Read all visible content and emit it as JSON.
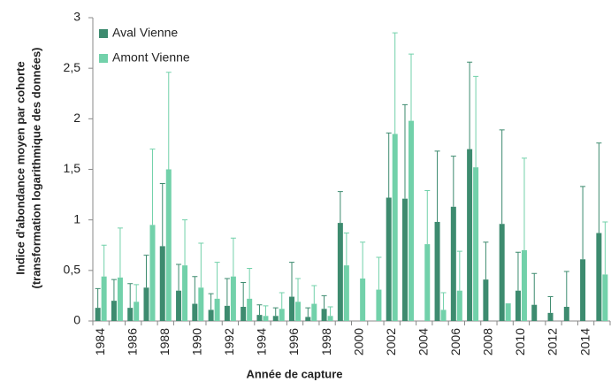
{
  "chart_data": {
    "type": "bar",
    "xlabel": "Année de capture",
    "ylabel": [
      "Indice d'abondance moyen par cohorte",
      "(transformation logarithmique des données)"
    ],
    "categories": [
      "1984",
      null,
      "1986",
      null,
      "1988",
      null,
      "1990",
      null,
      "1992",
      null,
      "1994",
      null,
      "1996",
      null,
      "1998",
      null,
      "2000",
      null,
      "2002",
      null,
      "2004",
      null,
      "2006",
      null,
      "2008",
      null,
      "2010",
      null,
      "2012",
      null,
      "2014",
      null
    ],
    "series": [
      {
        "name": "Aval Vienne",
        "color": "#3d8b6f",
        "values": [
          0.13,
          0.2,
          0.13,
          0.33,
          0.74,
          0.3,
          0.17,
          0.11,
          0.15,
          0.14,
          0.06,
          0.05,
          0.24,
          0.04,
          0.12,
          0.97,
          null,
          null,
          1.22,
          1.21,
          null,
          0.98,
          1.13,
          1.7,
          0.41,
          0.96,
          0.3,
          0.16,
          0.08,
          0.14,
          0.61,
          0.87
        ],
        "errors": [
          0.19,
          0.21,
          0.24,
          0.32,
          0.62,
          0.26,
          0.27,
          0.16,
          0.27,
          0.24,
          0.1,
          0.08,
          0.34,
          0.09,
          0.13,
          0.31,
          null,
          null,
          0.64,
          0.93,
          null,
          0.7,
          0.5,
          0.86,
          0.37,
          0.93,
          0.38,
          0.31,
          0.16,
          0.35,
          0.72,
          0.89
        ]
      },
      {
        "name": "Amont Vienne",
        "color": "#72d1aa",
        "values": [
          0.44,
          0.43,
          0.19,
          0.95,
          1.5,
          0.55,
          0.33,
          0.22,
          0.44,
          0.22,
          0.05,
          0.12,
          0.19,
          0.17,
          0.05,
          0.55,
          0.42,
          0.31,
          1.85,
          1.98,
          0.76,
          0.11,
          0.3,
          1.52,
          null,
          0.17,
          0.7,
          null,
          null,
          null,
          null,
          0.46
        ],
        "errors": [
          0.31,
          0.49,
          0.17,
          0.75,
          0.96,
          0.45,
          0.44,
          0.36,
          0.38,
          0.3,
          0.1,
          0.16,
          0.23,
          0.18,
          0.09,
          0.32,
          0.36,
          0.32,
          1.0,
          0.66,
          0.53,
          0.17,
          0.39,
          0.9,
          null,
          0,
          0.91,
          null,
          null,
          null,
          null,
          0.52
        ]
      }
    ],
    "ylim": [
      0,
      3
    ],
    "yticks": [
      0,
      {
        "value": 0.5,
        "label": "0,5"
      },
      1,
      {
        "value": 1.5,
        "label": "1,5"
      },
      2,
      {
        "value": 2.5,
        "label": "2,5"
      },
      3
    ],
    "legend": "top-left"
  }
}
